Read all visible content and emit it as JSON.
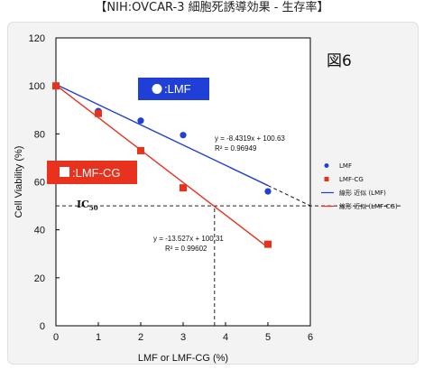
{
  "page": {
    "title": "【NIH:OVCAR-3  細胞死誘導効果 - 生存率】"
  },
  "figure_label": "図6",
  "callouts": {
    "lmf": ":LMF",
    "lmfcg": ":LMF-CG"
  },
  "ic50": {
    "main": "IC",
    "sub": "50"
  },
  "colors": {
    "lmf": "#1f3fd6",
    "lmfcg": "#e8321e",
    "callout_blue": "#1f3fd6",
    "callout_red": "#e8321e",
    "background": "#f3f3f3"
  },
  "chart_data": {
    "type": "scatter",
    "xlabel": "LMF or LMF-CG (%)",
    "ylabel": "Cell Viability (%)",
    "xlim": [
      0,
      6
    ],
    "ylim": [
      0,
      120
    ],
    "xticks": [
      "0",
      "1",
      "2",
      "3",
      "4",
      "5",
      "6"
    ],
    "yticks": [
      "0",
      "20",
      "40",
      "60",
      "80",
      "100",
      "120"
    ],
    "series": [
      {
        "name": "LMF",
        "marker": "circle",
        "color": "#1f3fd6",
        "x": [
          0,
          1,
          2,
          3,
          5
        ],
        "y": [
          100,
          89.5,
          85.5,
          79.5,
          56
        ]
      },
      {
        "name": "LMF-CG",
        "marker": "square",
        "color": "#e8321e",
        "x": [
          0,
          1,
          2,
          3,
          5
        ],
        "y": [
          100,
          88.5,
          73,
          57.5,
          34
        ]
      }
    ],
    "trendlines": [
      {
        "name": "線形 近似 (LMF)",
        "slope": -8.4319,
        "intercept": 100.63,
        "equation": "y = -8.4319x + 100.63",
        "r2": "R² = 0.96949",
        "color": "#1f3fd6",
        "x_range": [
          0,
          5
        ]
      },
      {
        "name": "線形 近似 (LMF-CG)",
        "slope": -13.527,
        "intercept": 100.31,
        "equation": "y = -13.527x + 100.31",
        "r2": "R² = 0.99602",
        "color": "#e8321e",
        "x_range": [
          0,
          5
        ]
      }
    ],
    "extensions": [
      {
        "slope": -8.4319,
        "intercept": 100.63,
        "x_range": [
          5,
          6
        ]
      },
      {
        "slope": -13.527,
        "intercept": 100.31,
        "x_range": [
          3.74,
          5
        ]
      }
    ],
    "ic50_line": {
      "y": 50,
      "x_from": 0,
      "x_to": 6
    },
    "ic50_drop": {
      "x": 3.74,
      "y_from": 0,
      "y_to": 50
    },
    "legend": {
      "placement": "right",
      "entries": [
        "LMF",
        "LMF-CG",
        "線形 近似 (LMF)",
        "線形 近似 (LMF-CG)"
      ]
    },
    "grid": false
  }
}
